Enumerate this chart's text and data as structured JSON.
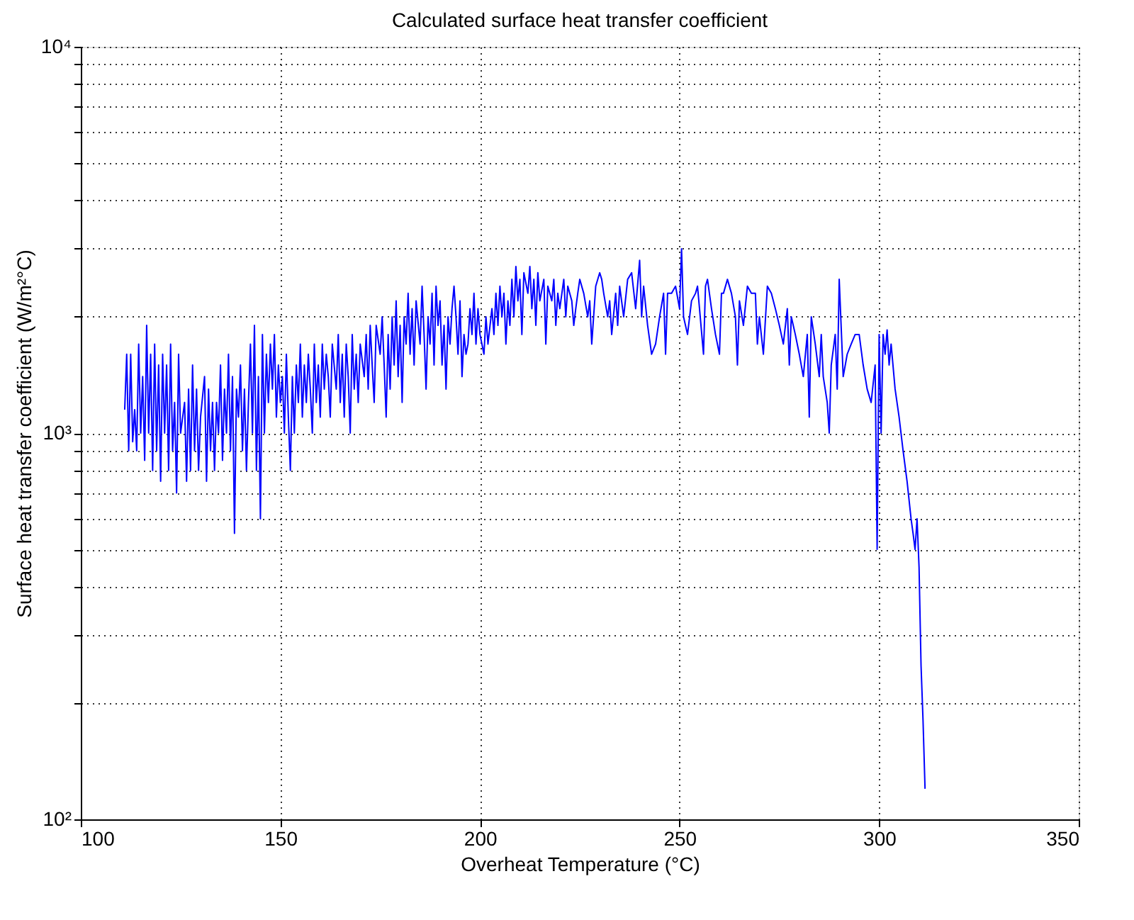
{
  "chart_data": {
    "type": "line",
    "title": "Calculated surface heat transfer coefficient",
    "xlabel": "Overheat Temperature (°C)",
    "ylabel": "Surface heat transfer coefficient (W/m²°C)",
    "log": "y",
    "grid": true,
    "xlim": [
      100,
      350
    ],
    "xticks": [
      100,
      150,
      200,
      250,
      300,
      350
    ],
    "ylim": [
      100,
      10000
    ],
    "yticks": [
      {
        "value": 100,
        "label": "10²"
      },
      {
        "value": 200,
        "label": null
      },
      {
        "value": 300,
        "label": null
      },
      {
        "value": 400,
        "label": null
      },
      {
        "value": 500,
        "label": null
      },
      {
        "value": 600,
        "label": null
      },
      {
        "value": 700,
        "label": null
      },
      {
        "value": 800,
        "label": null
      },
      {
        "value": 900,
        "label": null
      },
      {
        "value": 1000,
        "label": "10³"
      },
      {
        "value": 2000,
        "label": null
      },
      {
        "value": 3000,
        "label": null
      },
      {
        "value": 4000,
        "label": null
      },
      {
        "value": 5000,
        "label": null
      },
      {
        "value": 6000,
        "label": null
      },
      {
        "value": 7000,
        "label": null
      },
      {
        "value": 8000,
        "label": null
      },
      {
        "value": 9000,
        "label": null
      },
      {
        "value": 10000,
        "label": "10⁴"
      }
    ],
    "series": [
      {
        "color": "#0000ff",
        "x": [
          111,
          111.5,
          112,
          112.5,
          113,
          113.5,
          114,
          114.5,
          115,
          115.5,
          116,
          116.5,
          117,
          117.5,
          118,
          118.5,
          119,
          119.5,
          120,
          120.5,
          121,
          121.5,
          122,
          122.5,
          123,
          123.5,
          124,
          124.5,
          125,
          126,
          126.5,
          127,
          127.5,
          128,
          128.5,
          129,
          129.5,
          130,
          131,
          131.5,
          132,
          132.5,
          133,
          133.5,
          134,
          134.5,
          135,
          135.5,
          136,
          136.5,
          137,
          137.5,
          138,
          138.5,
          139,
          139.5,
          140,
          140.5,
          141,
          141.5,
          142,
          142.5,
          143,
          143.5,
          144,
          144.5,
          145,
          145.5,
          146,
          146.5,
          147,
          147.5,
          148,
          148.5,
          149,
          149.5,
          150,
          150.5,
          151,
          151.5,
          152,
          152.5,
          153,
          153.5,
          154,
          154.5,
          155,
          155.5,
          156,
          156.5,
          157,
          157.5,
          158,
          158.5,
          159,
          159.5,
          160,
          160.5,
          161,
          161.5,
          162,
          162.5,
          163,
          164,
          164.5,
          165,
          165.5,
          166,
          166.5,
          167,
          167.5,
          168,
          168.5,
          169,
          169.5,
          170,
          171,
          171.5,
          172,
          172.5,
          173,
          173.5,
          174,
          175,
          175.5,
          176,
          176.5,
          177,
          177.5,
          178,
          178.5,
          179,
          179.5,
          180,
          180.5,
          181,
          181.5,
          182,
          182.5,
          183,
          183.5,
          184,
          185,
          185.5,
          186,
          186.5,
          187,
          187.5,
          188,
          188.5,
          189,
          189.5,
          190,
          190.5,
          191,
          191.5,
          192,
          192.5,
          193,
          193.5,
          194,
          194.5,
          195,
          195.5,
          196,
          196.5,
          197,
          197.5,
          198,
          198.5,
          199,
          199.5,
          200,
          201,
          201.5,
          202,
          203,
          203.5,
          204,
          204.5,
          205,
          205.5,
          206,
          206.5,
          207,
          207.5,
          208,
          208.5,
          209,
          209.5,
          210,
          210.5,
          211,
          212,
          212.5,
          213,
          213.5,
          214,
          214.5,
          215,
          216,
          216.5,
          217,
          218,
          218.5,
          219,
          219.5,
          220,
          221,
          221.5,
          222,
          223,
          223.5,
          224,
          224.5,
          225,
          226,
          227,
          227.5,
          228,
          229,
          230,
          230.5,
          231,
          232,
          232.5,
          233,
          234,
          234.5,
          235,
          236,
          237,
          238,
          239,
          240,
          240.5,
          241,
          242,
          243,
          244,
          245,
          246,
          246.5,
          247,
          248,
          249,
          250,
          250.5,
          251,
          252,
          253,
          254,
          254.5,
          255,
          256,
          256.5,
          257,
          258,
          259,
          260,
          260.5,
          261,
          262,
          263,
          264,
          264.5,
          265,
          266,
          267,
          268,
          269,
          269.5,
          270,
          271,
          272,
          273,
          274,
          275,
          276,
          277,
          277.5,
          278,
          279,
          280,
          281,
          282,
          282.5,
          283,
          284,
          285,
          285.5,
          286,
          287,
          287.5,
          288,
          289,
          289.5,
          290,
          291,
          292,
          293,
          294,
          295,
          296,
          297,
          298,
          299,
          299.5,
          300,
          300.5,
          301,
          301.5,
          302,
          302.5,
          303,
          304,
          305,
          306,
          307,
          308,
          308.5,
          309,
          309.5,
          310,
          310.5,
          311,
          311.5
        ],
        "values": [
          1150,
          1600,
          900,
          1600,
          950,
          1150,
          900,
          1700,
          1000,
          1400,
          850,
          1900,
          1000,
          1600,
          800,
          1700,
          900,
          1500,
          750,
          1600,
          1000,
          1500,
          800,
          1700,
          900,
          1200,
          700,
          1600,
          1000,
          1200,
          750,
          1300,
          800,
          1500,
          900,
          1300,
          800,
          1100,
          1400,
          750,
          1300,
          900,
          1200,
          800,
          1200,
          1000,
          1500,
          850,
          1300,
          1000,
          1600,
          900,
          1400,
          550,
          1300,
          1100,
          1500,
          900,
          1300,
          800,
          1200,
          1700,
          1000,
          1900,
          800,
          1400,
          600,
          1800,
          1000,
          1600,
          1200,
          1700,
          1300,
          1800,
          1100,
          1500,
          1200,
          1400,
          1000,
          1600,
          1100,
          800,
          1400,
          1000,
          1500,
          1200,
          1700,
          1100,
          1500,
          1200,
          1600,
          1300,
          1000,
          1700,
          1200,
          1500,
          1100,
          1700,
          1300,
          1600,
          1400,
          1100,
          1700,
          1300,
          1800,
          1200,
          1600,
          1100,
          1700,
          1400,
          1000,
          1800,
          1300,
          1600,
          1200,
          1700,
          1400,
          1800,
          1300,
          1900,
          1500,
          1200,
          1900,
          1600,
          2000,
          1500,
          1100,
          1800,
          1300,
          2000,
          1500,
          2200,
          1400,
          1900,
          1200,
          2000,
          1700,
          2300,
          1600,
          2100,
          1500,
          2200,
          1700,
          2400,
          1800,
          1300,
          2000,
          1700,
          2300,
          1500,
          2400,
          1900,
          2200,
          1500,
          1900,
          1300,
          2000,
          1700,
          2100,
          2400,
          2000,
          1600,
          2200,
          1400,
          1800,
          1600,
          1700,
          2100,
          1800,
          2300,
          1700,
          2100,
          1800,
          1600,
          2000,
          1700,
          2100,
          1800,
          2300,
          1900,
          2400,
          2000,
          2300,
          1700,
          2200,
          1900,
          2500,
          2000,
          2700,
          2200,
          2500,
          1800,
          2600,
          2300,
          2700,
          2100,
          2500,
          1900,
          2600,
          2200,
          2500,
          1700,
          2400,
          2200,
          2500,
          1900,
          2300,
          2100,
          2500,
          2000,
          2400,
          2200,
          1900,
          2100,
          2300,
          2500,
          2300,
          2000,
          2200,
          1700,
          2400,
          2600,
          2500,
          2300,
          2000,
          2200,
          1800,
          2300,
          1900,
          2400,
          2000,
          2500,
          2600,
          2100,
          2800,
          2000,
          2400,
          1900,
          1600,
          1700,
          2000,
          2300,
          1600,
          2300,
          2300,
          2400,
          2100,
          3000,
          2000,
          1800,
          2200,
          2300,
          2400,
          2100,
          1600,
          2400,
          2500,
          2100,
          1800,
          1600,
          2300,
          2300,
          2500,
          2300,
          2000,
          1500,
          2200,
          1900,
          2400,
          2300,
          2300,
          1700,
          2000,
          1600,
          2400,
          2300,
          2100,
          1900,
          1700,
          2100,
          1500,
          2000,
          1800,
          1600,
          1400,
          1800,
          1100,
          2000,
          1700,
          1400,
          1800,
          1400,
          1200,
          1000,
          1500,
          1800,
          1300,
          2500,
          1400,
          1600,
          1700,
          1800,
          1800,
          1500,
          1300,
          1200,
          1500,
          500,
          1800,
          1000,
          1800,
          1600,
          1850,
          1500,
          1700,
          1300,
          1100,
          900,
          750,
          600,
          550,
          500,
          600,
          450,
          250,
          180,
          120
        ]
      }
    ]
  }
}
